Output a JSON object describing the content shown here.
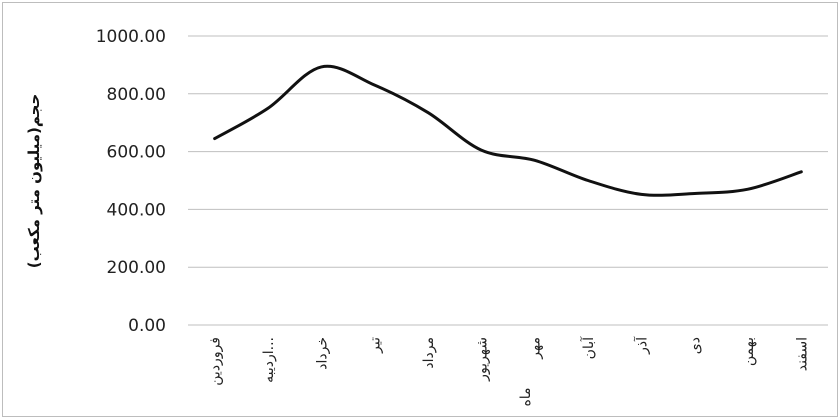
{
  "chart_data": {
    "type": "line",
    "title": "",
    "xlabel": "ماه",
    "ylabel": "حجم(میلیون متر مکعب)",
    "categories": [
      "فروردین",
      "اردیبهشت",
      "خرداد",
      "تیر",
      "مرداد",
      "شهریور",
      "مهر",
      "آبان",
      "آذر",
      "دی",
      "بهمن",
      "اسفند"
    ],
    "tick_labels": [
      "فروردین",
      "اردیبه...",
      "خرداد",
      "تیر",
      "مرداد",
      "شهریور",
      "مهر",
      "آبان",
      "آذر",
      "دی",
      "بهمن",
      "اسفند"
    ],
    "y_ticks": [
      "0.00",
      "200.00",
      "400.00",
      "600.00",
      "800.00",
      "1000.00"
    ],
    "ylim": [
      0,
      1000
    ],
    "grid": true,
    "legend": "none",
    "series": [
      {
        "values": [
          645,
          750,
          893,
          830,
          735,
          605,
          570,
          500,
          452,
          455,
          470,
          530
        ]
      }
    ],
    "colors": {
      "line": "#111111",
      "grid": "#bfbfbf"
    }
  }
}
